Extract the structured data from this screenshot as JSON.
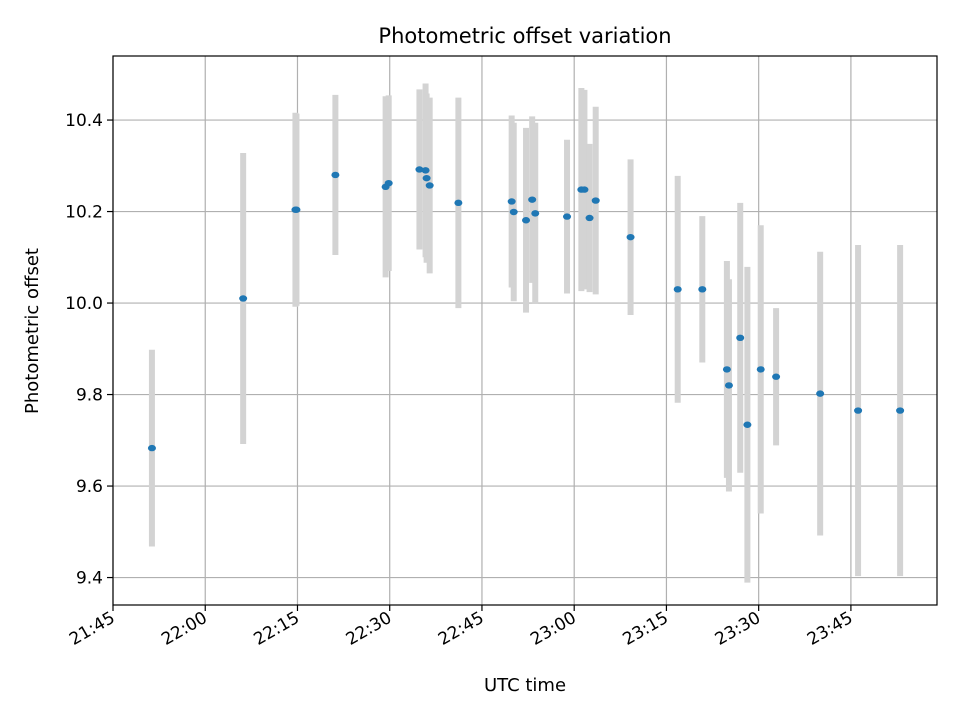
{
  "chart_data": {
    "type": "scatter",
    "title": "Photometric offset variation",
    "xlabel": "UTC time",
    "ylabel": "Photometric offset",
    "grid": true,
    "xlim": [
      "21:45",
      "23:59"
    ],
    "ylim": [
      9.34,
      10.54
    ],
    "x_ticks": [
      "21:45",
      "22:00",
      "22:15",
      "22:30",
      "22:45",
      "23:00",
      "23:15",
      "23:30",
      "23:45"
    ],
    "y_ticks": [
      "9.4",
      "9.6",
      "9.8",
      "10.0",
      "10.2",
      "10.4"
    ],
    "colors": {
      "points": "#1f77b4",
      "errorbars": "#d3d3d3",
      "grid": "#b0b0b0"
    },
    "series": [
      {
        "points": [
          {
            "x": "21:51:20",
            "y": 9.683,
            "err": 0.215
          },
          {
            "x": "22:06:10",
            "y": 10.01,
            "err": 0.318
          },
          {
            "x": "22:14:40",
            "y": 10.204,
            "err": 0.212
          },
          {
            "x": "22:14:50",
            "y": 10.204,
            "err": 0.21
          },
          {
            "x": "22:21:10",
            "y": 10.28,
            "err": 0.175
          },
          {
            "x": "22:29:20",
            "y": 10.254,
            "err": 0.198
          },
          {
            "x": "22:29:50",
            "y": 10.262,
            "err": 0.192
          },
          {
            "x": "22:34:50",
            "y": 10.292,
            "err": 0.175
          },
          {
            "x": "22:35:50",
            "y": 10.29,
            "err": 0.19
          },
          {
            "x": "22:36:00",
            "y": 10.273,
            "err": 0.185
          },
          {
            "x": "22:36:30",
            "y": 10.257,
            "err": 0.192
          },
          {
            "x": "22:41:10",
            "y": 10.219,
            "err": 0.23
          },
          {
            "x": "22:49:50",
            "y": 10.222,
            "err": 0.188
          },
          {
            "x": "22:50:10",
            "y": 10.199,
            "err": 0.195
          },
          {
            "x": "22:52:10",
            "y": 10.181,
            "err": 0.202
          },
          {
            "x": "22:53:10",
            "y": 10.226,
            "err": 0.182
          },
          {
            "x": "22:53:40",
            "y": 10.196,
            "err": 0.198
          },
          {
            "x": "22:58:50",
            "y": 10.189,
            "err": 0.168
          },
          {
            "x": "23:01:10",
            "y": 10.248,
            "err": 0.222
          },
          {
            "x": "23:01:40",
            "y": 10.248,
            "err": 0.218
          },
          {
            "x": "23:02:30",
            "y": 10.186,
            "err": 0.162
          },
          {
            "x": "23:03:30",
            "y": 10.224,
            "err": 0.205
          },
          {
            "x": "23:09:10",
            "y": 10.144,
            "err": 0.17
          },
          {
            "x": "23:16:50",
            "y": 10.03,
            "err": 0.248
          },
          {
            "x": "23:20:50",
            "y": 10.03,
            "err": 0.16
          },
          {
            "x": "23:24:50",
            "y": 9.855,
            "err": 0.237
          },
          {
            "x": "23:25:10",
            "y": 9.82,
            "err": 0.232
          },
          {
            "x": "23:27:00",
            "y": 9.924,
            "err": 0.295
          },
          {
            "x": "23:28:10",
            "y": 9.734,
            "err": 0.345
          },
          {
            "x": "23:30:20",
            "y": 9.855,
            "err": 0.315
          },
          {
            "x": "23:32:50",
            "y": 9.839,
            "err": 0.15
          },
          {
            "x": "23:40:00",
            "y": 9.802,
            "err": 0.31
          },
          {
            "x": "23:46:10",
            "y": 9.765,
            "err": 0.362
          },
          {
            "x": "23:53:00",
            "y": 9.765,
            "err": 0.362
          }
        ]
      }
    ]
  }
}
